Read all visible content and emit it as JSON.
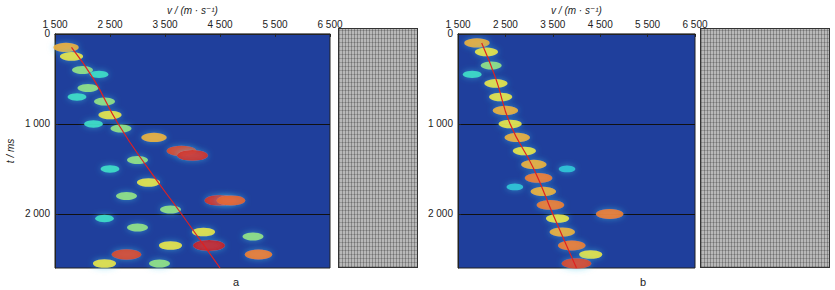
{
  "chart_data": [
    {
      "type": "heatmap",
      "panel_label": "a",
      "x_label": "v / (m · s⁻¹)",
      "y_label": "t / ms",
      "xlim": [
        1500,
        6500
      ],
      "xticks": [
        {
          "value": 1500,
          "label": "1 500"
        },
        {
          "value": 2500,
          "label": "2 500"
        },
        {
          "value": 3500,
          "label": "3 500"
        },
        {
          "value": 4500,
          "label": "4 500"
        },
        {
          "value": 5500,
          "label": "5 500"
        },
        {
          "value": 6500,
          "label": "6 500"
        }
      ],
      "ylim": [
        0,
        2600
      ],
      "yticks": [
        0,
        {
          "value": 1000,
          "label": "1 000"
        },
        {
          "value": 2000,
          "label": "2 000"
        }
      ],
      "grid": true,
      "cell_range": [
        0,
        1
      ],
      "cells": [
        [
          1700,
          150,
          0.7
        ],
        [
          1800,
          250,
          0.6
        ],
        [
          2000,
          400,
          0.5
        ],
        [
          2300,
          450,
          0.4
        ],
        [
          2100,
          600,
          0.5
        ],
        [
          1900,
          700,
          0.4
        ],
        [
          2400,
          750,
          0.5
        ],
        [
          2500,
          900,
          0.6
        ],
        [
          2200,
          1000,
          0.4
        ],
        [
          2700,
          1050,
          0.5
        ],
        [
          3300,
          1150,
          0.7
        ],
        [
          3800,
          1300,
          0.9
        ],
        [
          4000,
          1350,
          0.95
        ],
        [
          3000,
          1400,
          0.5
        ],
        [
          2500,
          1500,
          0.4
        ],
        [
          3200,
          1650,
          0.6
        ],
        [
          2800,
          1800,
          0.5
        ],
        [
          4500,
          1850,
          0.95
        ],
        [
          4700,
          1850,
          0.85
        ],
        [
          3600,
          1950,
          0.5
        ],
        [
          2400,
          2050,
          0.4
        ],
        [
          3000,
          2150,
          0.5
        ],
        [
          4200,
          2200,
          0.6
        ],
        [
          5100,
          2250,
          0.5
        ],
        [
          4300,
          2350,
          1.0
        ],
        [
          3600,
          2350,
          0.6
        ],
        [
          5200,
          2450,
          0.8
        ],
        [
          2800,
          2450,
          0.9
        ],
        [
          2400,
          2550,
          0.6
        ],
        [
          3400,
          2550,
          0.5
        ]
      ],
      "series": [
        {
          "type": "line",
          "color": "#e02020",
          "values": [
            [
              1800,
              150
            ],
            [
              2200,
              500
            ],
            [
              2650,
              1000
            ],
            [
              3200,
              1500
            ],
            [
              3800,
              2000
            ],
            [
              4500,
              2600
            ]
          ]
        }
      ]
    },
    {
      "type": "heatmap",
      "panel_label": "b",
      "x_label": "v / (m · s⁻¹)",
      "xlim": [
        1500,
        6500
      ],
      "xticks": [
        {
          "value": 1500,
          "label": "1 500"
        },
        {
          "value": 2500,
          "label": "2 500"
        },
        {
          "value": 3500,
          "label": "3 500"
        },
        {
          "value": 4500,
          "label": "4 500"
        },
        {
          "value": 5500,
          "label": "5 500"
        },
        {
          "value": 6500,
          "label": "6 500"
        }
      ],
      "ylim": [
        0,
        2600
      ],
      "yticks": [
        0,
        {
          "value": 1000,
          "label": "1 000"
        },
        {
          "value": 2000,
          "label": "2 000"
        }
      ],
      "grid": true,
      "cell_range": [
        0,
        1
      ],
      "cells": [
        [
          1900,
          100,
          0.7
        ],
        [
          2100,
          200,
          0.6
        ],
        [
          2200,
          350,
          0.5
        ],
        [
          1800,
          450,
          0.4
        ],
        [
          2300,
          550,
          0.6
        ],
        [
          2400,
          700,
          0.6
        ],
        [
          2500,
          850,
          0.7
        ],
        [
          2600,
          1000,
          0.6
        ],
        [
          2750,
          1150,
          0.7
        ],
        [
          2900,
          1300,
          0.6
        ],
        [
          3100,
          1450,
          0.7
        ],
        [
          3200,
          1600,
          0.8
        ],
        [
          3300,
          1750,
          0.7
        ],
        [
          3450,
          1900,
          0.8
        ],
        [
          3600,
          2050,
          0.6
        ],
        [
          4700,
          2000,
          0.8
        ],
        [
          3700,
          2200,
          0.7
        ],
        [
          3900,
          2350,
          0.8
        ],
        [
          4300,
          2450,
          0.6
        ],
        [
          4000,
          2550,
          0.9
        ],
        [
          2700,
          1700,
          0.3
        ],
        [
          3800,
          1500,
          0.3
        ]
      ],
      "series": [
        {
          "type": "line",
          "color": "#e02020",
          "values": [
            [
              2000,
              100
            ],
            [
              2300,
              500
            ],
            [
              2600,
              1000
            ],
            [
              3100,
              1500
            ],
            [
              3500,
              2000
            ],
            [
              4000,
              2600
            ]
          ]
        }
      ]
    }
  ]
}
